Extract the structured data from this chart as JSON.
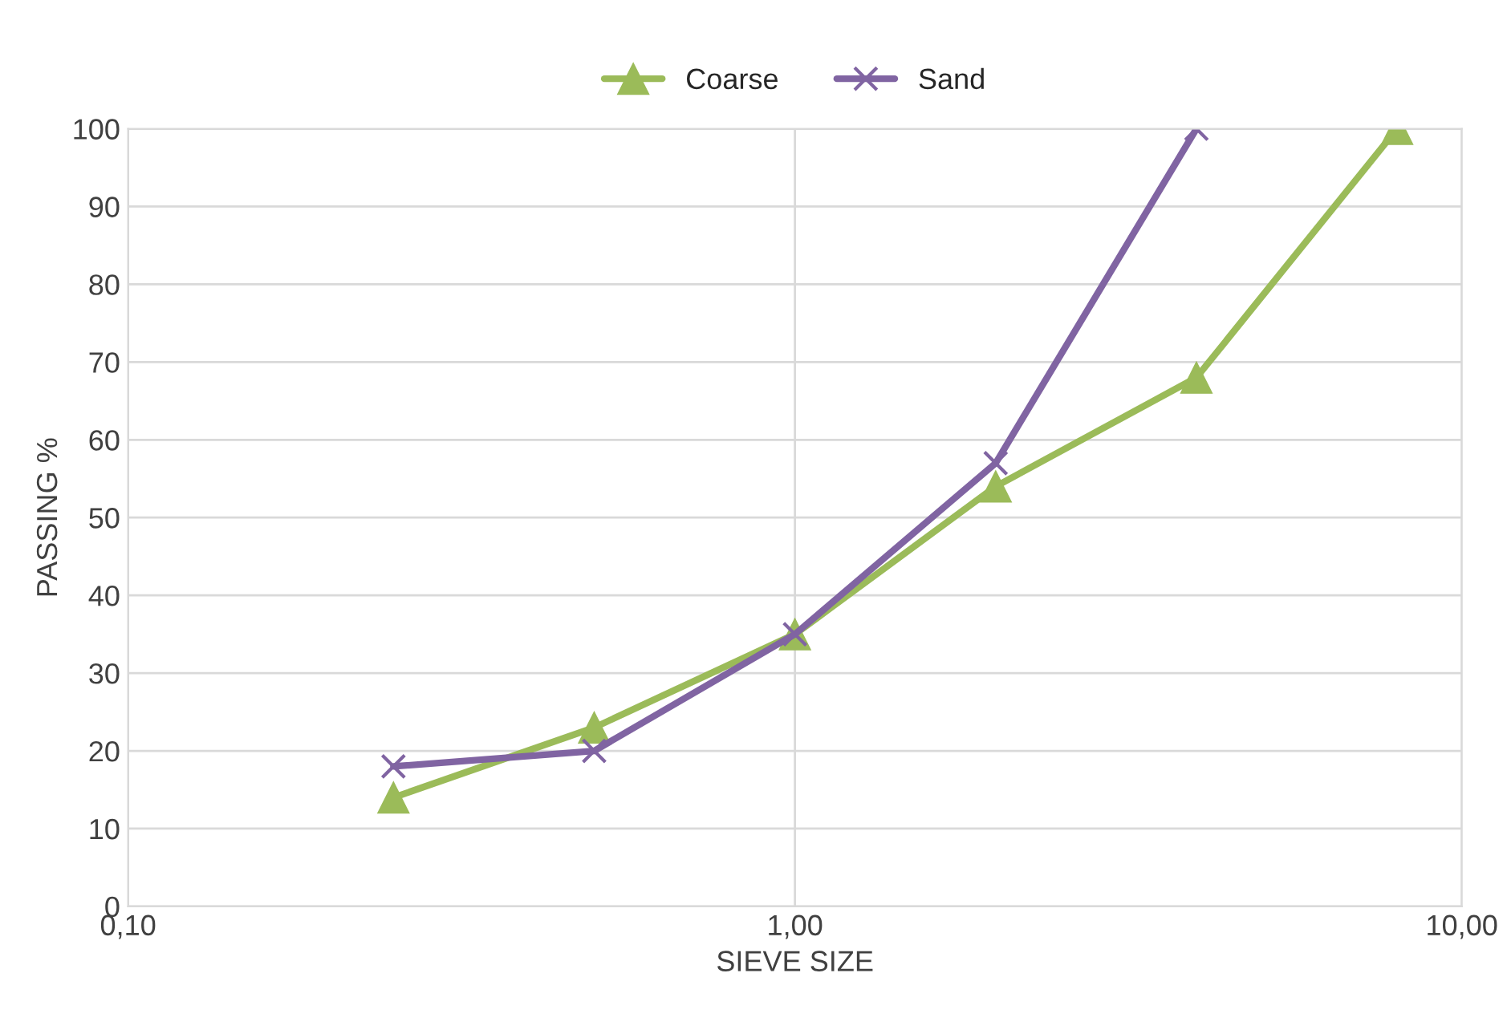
{
  "chart_data": {
    "type": "line",
    "xlabel": "SIEVE SIZE",
    "ylabel": "PASSING %",
    "log": "x",
    "xlim": [
      0.1,
      10
    ],
    "xticks": [
      {
        "value": 0.1,
        "label": "0,10"
      },
      {
        "value": 1,
        "label": "1,00"
      },
      {
        "value": 10,
        "label": "10,00"
      }
    ],
    "ylim": [
      0,
      100
    ],
    "yticks": [
      0,
      10,
      20,
      30,
      40,
      50,
      60,
      70,
      80,
      90,
      100
    ],
    "grid": true,
    "legend": "top",
    "line_style": "solid",
    "series": [
      {
        "name": "Coarse",
        "color": "#9bbb59",
        "marker": "triangle",
        "x": [
          0.25,
          0.5,
          1,
          2,
          4,
          8
        ],
        "values": [
          14,
          23,
          35,
          54,
          68,
          100
        ]
      },
      {
        "name": "Sand",
        "color": "#8064a2",
        "marker": "cross",
        "x": [
          0.25,
          0.5,
          1,
          2,
          4
        ],
        "values": [
          18,
          20,
          35,
          57,
          100
        ]
      }
    ]
  }
}
